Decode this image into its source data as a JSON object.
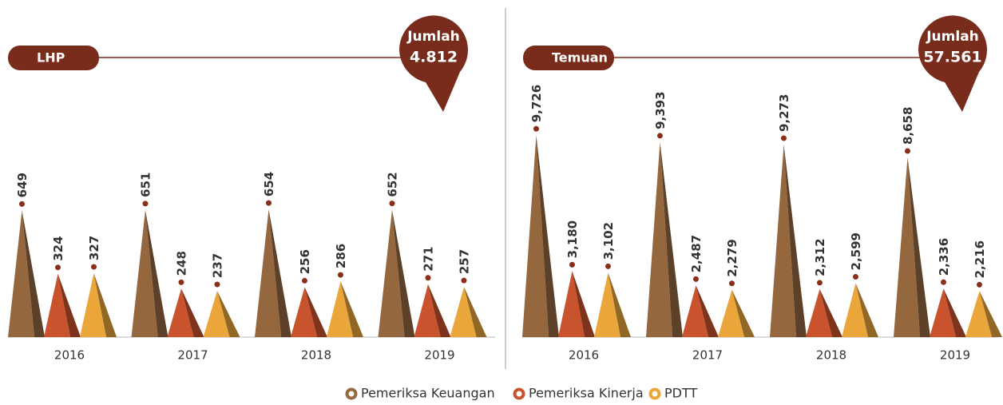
{
  "chart_data": [
    {
      "type": "cone-bar",
      "title": "LHP",
      "annotation": {
        "title": "Jumlah",
        "text": "4.812"
      },
      "categories": [
        "2016",
        "2017",
        "2018",
        "2019"
      ],
      "ylim": [
        0,
        1350
      ],
      "series": [
        {
          "name": "Pemeriksa Keuangan",
          "color": "#94673f",
          "values": [
            649,
            651,
            654,
            652
          ]
        },
        {
          "name": "Pemeriksa Kinerja",
          "color": "#c9532d",
          "values": [
            324,
            248,
            256,
            271
          ]
        },
        {
          "name": "PDTT",
          "color": "#eaa63b",
          "values": [
            327,
            237,
            286,
            257
          ]
        }
      ]
    },
    {
      "type": "cone-bar",
      "title": "Temuan",
      "annotation": {
        "title": "Jumlah",
        "text": "57.561"
      },
      "categories": [
        "2016",
        "2017",
        "2018",
        "2019"
      ],
      "ylim": [
        0,
        12700
      ],
      "series": [
        {
          "name": "Pemeriksa Keuangan",
          "color": "#94673f",
          "values": [
            9726,
            9393,
            9273,
            8658
          ],
          "value_labels": [
            "9,726",
            "9,393",
            "9,273",
            "8,658"
          ]
        },
        {
          "name": "Pemeriksa Kinerja",
          "color": "#c9532d",
          "values": [
            3180,
            2487,
            2312,
            2336
          ],
          "value_labels": [
            "3,180",
            "2,487",
            "2,312",
            "2,336"
          ]
        },
        {
          "name": "PDTT",
          "color": "#eaa63b",
          "values": [
            3102,
            2279,
            2599,
            2216
          ],
          "value_labels": [
            "3,102",
            "2,279",
            "2,599",
            "2,216"
          ]
        }
      ]
    }
  ]
}
